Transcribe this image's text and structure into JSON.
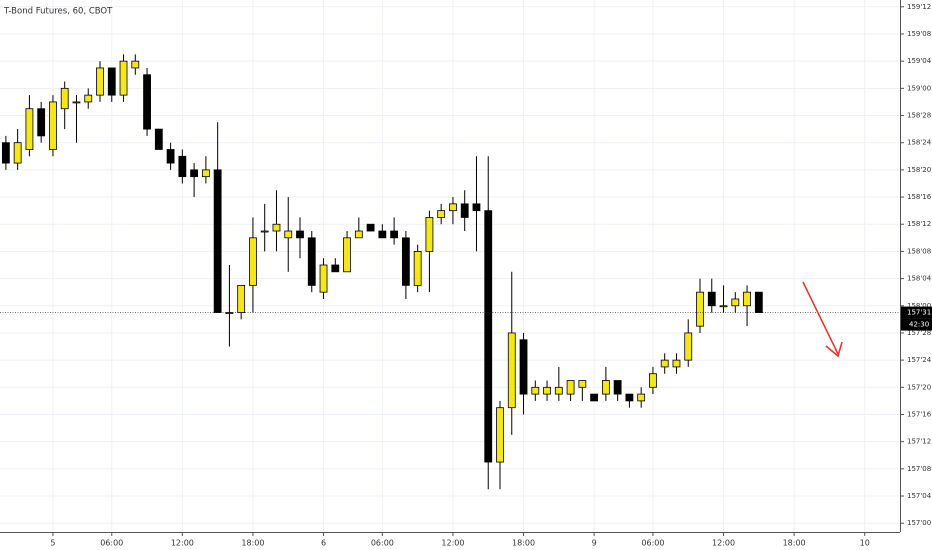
{
  "chart_data": {
    "type": "candlestick",
    "title": "T-Bond Futures, 60, CBOT",
    "up_color": "#f5e61a",
    "down_color": "#000000",
    "wick_color": "#000000",
    "grid": true,
    "x": [
      0,
      1,
      2,
      3,
      4,
      5,
      6,
      7,
      8,
      9,
      10,
      11,
      12,
      13,
      14,
      15,
      16,
      17,
      18,
      19,
      20,
      21,
      22,
      23,
      24,
      25,
      26,
      27,
      28,
      29,
      30,
      31,
      32,
      33,
      34,
      35,
      36,
      37,
      38,
      39,
      40,
      41,
      42,
      43,
      44,
      45,
      46,
      47,
      48,
      49,
      50,
      51,
      52,
      53,
      54,
      55,
      56,
      57,
      58,
      59,
      60,
      61,
      62,
      63,
      64
    ],
    "open": [
      158.75,
      158.65625,
      158.71875,
      158.90625,
      158.71875,
      158.90625,
      158.9375,
      158.9375,
      158.96875,
      159.09375,
      158.96875,
      159.09375,
      159.0625,
      158.8125,
      158.71875,
      158.6875,
      158.625,
      158.59375,
      158.625,
      157.96875,
      157.96875,
      158.09375,
      158.34375,
      158.34375,
      158.3125,
      158.34375,
      158.3125,
      158.0625,
      158.1875,
      158.15625,
      158.3125,
      158.375,
      158.34375,
      158.34375,
      158.3125,
      158.09375,
      158.25,
      158.40625,
      158.4375,
      158.46875,
      158.46875,
      158.4375,
      157.28125,
      157.53125,
      157.84375,
      157.59375,
      157.59375,
      157.59375,
      157.59375,
      157.625,
      157.59375,
      157.59375,
      157.65625,
      157.59375,
      157.5625,
      157.625,
      157.71875,
      157.71875,
      157.75,
      157.90625,
      158.0625,
      158,
      158,
      158,
      158.0625
    ],
    "high": [
      158.78125,
      158.8125,
      158.96875,
      158.9375,
      158.96875,
      159.03125,
      158.96875,
      159,
      159.125,
      159.09375,
      159.15625,
      159.15625,
      159.09375,
      158.8125,
      158.75,
      158.71875,
      158.65625,
      158.6875,
      158.84375,
      158.1875,
      158.09375,
      158.40625,
      158.46875,
      158.53125,
      158.5,
      158.40625,
      158.34375,
      158.21875,
      158.21875,
      158.34375,
      158.40625,
      158.375,
      158.375,
      158.40625,
      158.34375,
      158.28125,
      158.4375,
      158.46875,
      158.5,
      158.53125,
      158.6875,
      158.6875,
      157.5625,
      158.15625,
      157.875,
      157.65625,
      157.65625,
      157.71875,
      157.65625,
      157.65625,
      157.59375,
      157.71875,
      157.65625,
      157.59375,
      157.625,
      157.71875,
      157.78125,
      157.78125,
      157.9375,
      158.125,
      158.125,
      158.09375,
      158.0625,
      158.09375,
      158.0625
    ],
    "low": [
      158.625,
      158.625,
      158.6875,
      158.75,
      158.6875,
      158.8125,
      158.75,
      158.90625,
      158.9375,
      158.9375,
      158.9375,
      159.0625,
      158.78125,
      158.71875,
      158.625,
      158.5625,
      158.5,
      158.5625,
      157.96875,
      157.8125,
      157.9375,
      157.96875,
      158.25,
      158.25,
      158.15625,
      158.21875,
      158.0625,
      158.03125,
      158.15625,
      158.15625,
      158.3125,
      158.34375,
      158.3125,
      158.28125,
      158.03125,
      158.0625,
      158.0625,
      158.375,
      158.375,
      158.34375,
      158.25,
      157.15625,
      157.15625,
      157.40625,
      157.5,
      157.5625,
      157.5625,
      157.5625,
      157.5625,
      157.5625,
      157.5625,
      157.5625,
      157.5625,
      157.53125,
      157.53125,
      157.59375,
      157.6875,
      157.6875,
      157.71875,
      157.875,
      157.96875,
      157.96875,
      157.96875,
      157.90625,
      157.96875
    ],
    "close": [
      158.65625,
      158.75,
      158.90625,
      158.78125,
      158.9375,
      159,
      158.9375,
      158.96875,
      159.09375,
      158.96875,
      159.125,
      159.125,
      158.8125,
      158.71875,
      158.65625,
      158.59375,
      158.59375,
      158.625,
      157.96875,
      157.96875,
      158.09375,
      158.3125,
      158.34375,
      158.375,
      158.34375,
      158.3125,
      158.09375,
      158.1875,
      158.15625,
      158.3125,
      158.34375,
      158.34375,
      158.3125,
      158.3125,
      158.09375,
      158.25,
      158.40625,
      158.4375,
      158.46875,
      158.40625,
      158.4375,
      157.28125,
      157.53125,
      157.875,
      157.59375,
      157.625,
      157.625,
      157.625,
      157.65625,
      157.65625,
      157.5625,
      157.65625,
      157.59375,
      157.5625,
      157.59375,
      157.6875,
      157.75,
      157.75,
      157.875,
      158.0625,
      158,
      158,
      158.03125,
      158.0625,
      157.96875
    ],
    "xlim": [
      -0.5,
      76
    ],
    "xticks": [
      {
        "value": 4,
        "label": "5"
      },
      {
        "value": 9,
        "label": "06:00"
      },
      {
        "value": 15,
        "label": "12:00"
      },
      {
        "value": 21,
        "label": "18:00"
      },
      {
        "value": 27,
        "label": "6"
      },
      {
        "value": 32,
        "label": "06:00"
      },
      {
        "value": 38,
        "label": "12:00"
      },
      {
        "value": 44,
        "label": "18:00"
      },
      {
        "value": 50,
        "label": "9"
      },
      {
        "value": 55,
        "label": "06:00"
      },
      {
        "value": 61,
        "label": "12:00"
      },
      {
        "value": 67,
        "label": "18:00"
      },
      {
        "value": 73,
        "label": "10"
      }
    ],
    "ylim": [
      156.96875,
      159.40625
    ],
    "yticks": [
      {
        "value": 157,
        "label": "157'00"
      },
      {
        "value": 157.125,
        "label": "157'04"
      },
      {
        "value": 157.25,
        "label": "157'08"
      },
      {
        "value": 157.375,
        "label": "157'12"
      },
      {
        "value": 157.5,
        "label": "157'16"
      },
      {
        "value": 157.625,
        "label": "157'20"
      },
      {
        "value": 157.75,
        "label": "157'24"
      },
      {
        "value": 157.875,
        "label": "157'28"
      },
      {
        "value": 158,
        "label": "158'00"
      },
      {
        "value": 158.125,
        "label": "158'04"
      },
      {
        "value": 158.25,
        "label": "158'08"
      },
      {
        "value": 158.375,
        "label": "158'12"
      },
      {
        "value": 158.5,
        "label": "158'16"
      },
      {
        "value": 158.625,
        "label": "158'20"
      },
      {
        "value": 158.75,
        "label": "158'24"
      },
      {
        "value": 158.875,
        "label": "158'28"
      },
      {
        "value": 159,
        "label": "159'00"
      },
      {
        "value": 159.125,
        "label": "159'04"
      },
      {
        "value": 159.25,
        "label": "159'08"
      },
      {
        "value": 159.375,
        "label": "159'12"
      }
    ],
    "last_price": {
      "value": 157.96875,
      "label": "157'31"
    },
    "countdown": "42:30"
  }
}
